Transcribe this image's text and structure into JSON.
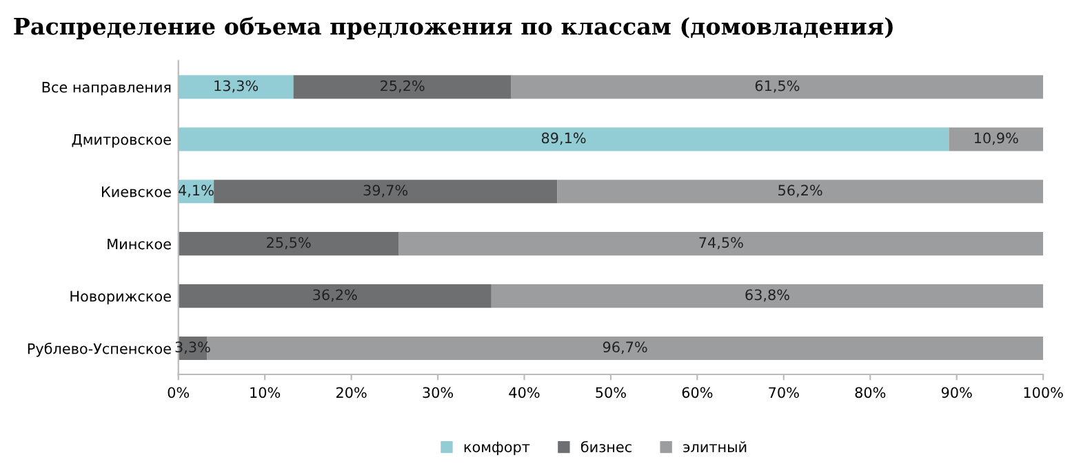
{
  "chart_data": {
    "type": "bar",
    "orientation": "horizontal",
    "stacked": true,
    "title": "Распределение объема предложения по классам (домовладения)",
    "categories": [
      "Все направления",
      "Дмитровское",
      "Киевское",
      "Минское",
      "Новорижское",
      "Рублево-Успенское"
    ],
    "series": [
      {
        "name": "комфорт",
        "color": "#92cdd6",
        "values": [
          13.3,
          89.1,
          4.1,
          null,
          null,
          null
        ],
        "value_labels": [
          "13,3%",
          "89,1%",
          "4,1%",
          null,
          null,
          null
        ]
      },
      {
        "name": "бизнес",
        "color": "#6d6f71",
        "values": [
          25.2,
          null,
          39.7,
          25.5,
          36.2,
          3.3
        ],
        "value_labels": [
          "25,2%",
          null,
          "39,7%",
          "25,5%",
          "36,2%",
          "3,3%"
        ]
      },
      {
        "name": "элитный",
        "color": "#9b9d9f",
        "values": [
          61.5,
          10.9,
          56.2,
          74.5,
          63.8,
          96.7
        ],
        "value_labels": [
          "61,5%",
          "10,9%",
          "56,2%",
          "74,5%",
          "63,8%",
          "96,7%"
        ]
      }
    ],
    "xlim": [
      0,
      100
    ],
    "xticks": [
      {
        "value": 0,
        "label": "0%"
      },
      {
        "value": 10,
        "label": "10%"
      },
      {
        "value": 20,
        "label": "20%"
      },
      {
        "value": 30,
        "label": "30%"
      },
      {
        "value": 40,
        "label": "40%"
      },
      {
        "value": 50,
        "label": "50%"
      },
      {
        "value": 60,
        "label": "60%"
      },
      {
        "value": 70,
        "label": "70%"
      },
      {
        "value": 80,
        "label": "80%"
      },
      {
        "value": 90,
        "label": "90%"
      },
      {
        "value": 100,
        "label": "100%"
      }
    ],
    "legend": "bottom"
  }
}
